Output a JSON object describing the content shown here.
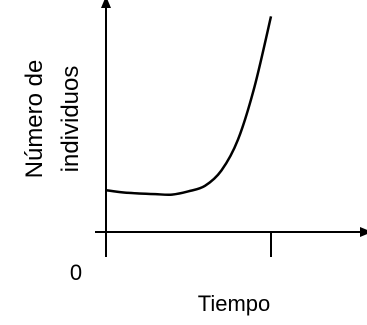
{
  "chart_data": {
    "type": "line",
    "title": "",
    "xlabel": "Tiempo",
    "ylabel_lines": [
      "Número de",
      "individuos"
    ],
    "origin_label": "0",
    "x_ticks": 2,
    "grid": false,
    "legend": "none",
    "xlim": [
      0,
      10
    ],
    "ylim": [
      0,
      10
    ],
    "series": [
      {
        "values": [
          {
            "x": 0.0,
            "y": 1.9
          },
          {
            "x": 1.0,
            "y": 1.8
          },
          {
            "x": 2.0,
            "y": 1.75
          },
          {
            "x": 3.0,
            "y": 1.72
          },
          {
            "x": 4.0,
            "y": 1.7
          },
          {
            "x": 5.0,
            "y": 1.85
          },
          {
            "x": 6.0,
            "y": 2.1
          },
          {
            "x": 7.0,
            "y": 2.8
          },
          {
            "x": 8.0,
            "y": 4.2
          },
          {
            "x": 9.0,
            "y": 6.6
          },
          {
            "x": 10.0,
            "y": 9.8
          }
        ]
      }
    ]
  }
}
